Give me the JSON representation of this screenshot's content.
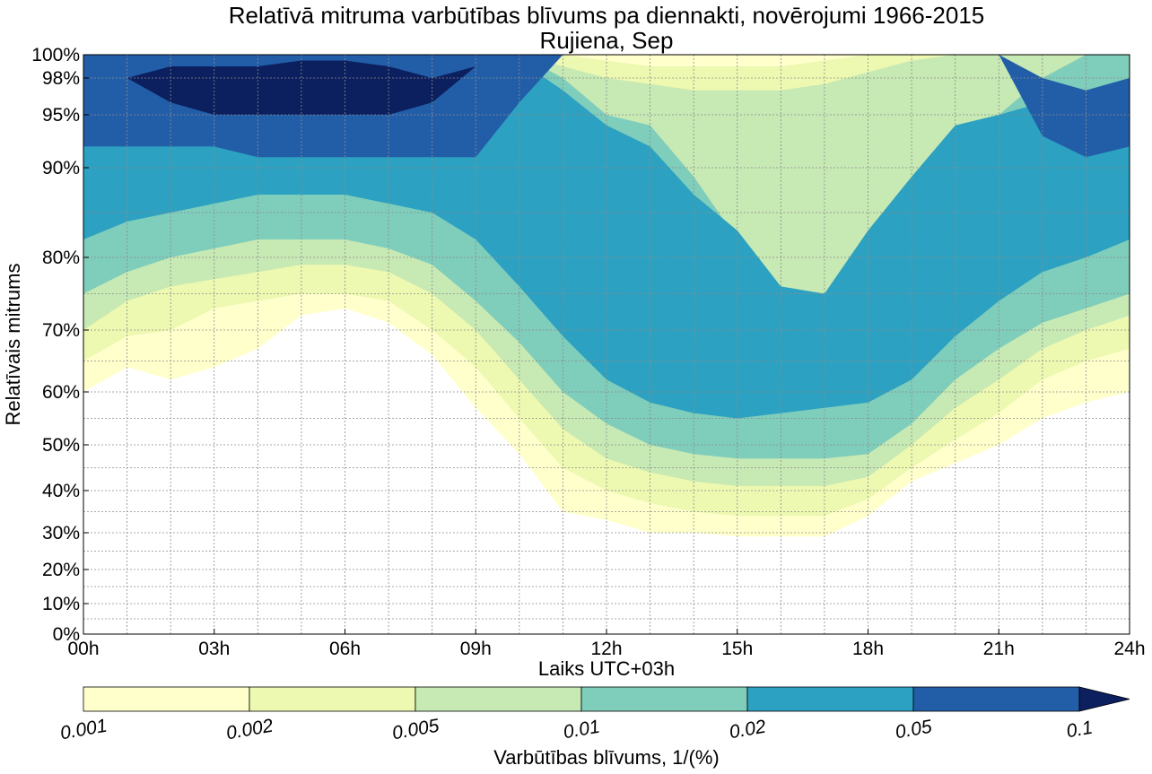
{
  "chart_data": {
    "type": "contour",
    "title": "Relatīvā mitruma varbūtības blīvums pa diennakti, novērojumi 1966-2015",
    "subtitle": "Rujiena, Sep",
    "xlabel": "Laiks UTC+03h",
    "ylabel": "Relatīvais mitrums",
    "x_ticks": [
      "00h",
      "03h",
      "06h",
      "09h",
      "12h",
      "15h",
      "18h",
      "21h",
      "24h"
    ],
    "y_ticks": [
      "0%",
      "10%",
      "20%",
      "30%",
      "40%",
      "50%",
      "60%",
      "70%",
      "80%",
      "90%",
      "95%",
      "98%",
      "100%"
    ],
    "xlim": [
      0,
      24
    ],
    "ylim": [
      0,
      100
    ],
    "grid": true,
    "colorbar": {
      "label": "Varbūtības blīvums, 1/(%)",
      "levels": [
        "0.001",
        "0.002",
        "0.005",
        "0.01",
        "0.02",
        "0.05",
        "0.1"
      ],
      "colors": [
        "#ffffcc",
        "#edf8b1",
        "#c7e9b4",
        "#7fcdbb",
        "#2ca1c1",
        "#225ea8",
        "#0c1f5e"
      ],
      "extend": "max"
    },
    "bands": [
      {
        "level": "0.001",
        "lower": [
          60,
          64,
          62,
          64,
          67,
          72,
          73,
          71,
          66,
          57,
          48,
          35,
          33,
          30,
          30,
          29,
          29,
          29,
          34,
          42,
          46,
          50,
          55,
          58,
          60
        ],
        "upper": [
          100,
          100,
          100,
          100,
          100,
          100,
          100,
          100,
          100,
          100,
          100,
          100,
          100,
          100,
          100,
          100,
          100,
          100,
          100,
          100,
          100,
          100,
          100,
          100,
          100
        ]
      },
      {
        "level": "0.002",
        "lower": [
          65,
          69,
          70,
          73,
          74,
          75,
          75,
          74,
          70,
          64,
          55,
          45,
          40,
          37,
          35,
          34,
          34,
          34,
          38,
          45,
          51,
          56,
          62,
          65,
          67
        ],
        "upper": [
          100,
          100,
          100,
          100,
          100,
          100,
          100,
          100,
          100,
          100,
          100,
          100,
          99.5,
          99,
          99,
          99,
          99,
          99.5,
          100,
          100,
          100,
          100,
          100,
          100,
          100
        ]
      },
      {
        "level": "0.005",
        "lower": [
          70,
          74,
          76,
          77,
          78,
          79,
          79,
          78,
          75,
          70,
          62,
          53,
          47,
          44,
          42,
          41,
          41,
          41,
          43,
          50,
          57,
          62,
          67,
          70,
          72
        ],
        "upper": [
          100,
          100,
          100,
          100,
          100,
          100,
          100,
          100,
          100,
          100,
          100,
          99,
          98,
          97.5,
          97,
          97,
          97,
          97.5,
          98.5,
          99.5,
          100,
          100,
          100,
          100,
          100
        ]
      },
      {
        "level": "0.01",
        "lower": [
          75,
          78,
          80,
          81,
          82,
          82,
          82,
          81,
          79,
          74,
          68,
          60,
          54,
          50,
          48,
          47,
          47,
          47,
          48,
          54,
          62,
          67,
          71,
          73,
          75
        ],
        "upper": [
          100,
          100,
          100,
          100,
          100,
          100,
          100,
          100,
          100,
          100,
          100,
          98,
          95,
          94,
          89,
          82,
          76,
          72,
          80,
          88,
          93,
          95,
          98,
          100,
          100
        ]
      },
      {
        "level": "0.02",
        "lower": [
          82,
          84,
          85,
          86,
          87,
          87,
          87,
          86,
          85,
          82,
          76,
          69,
          62,
          58,
          56,
          55,
          56,
          57,
          58,
          62,
          69,
          74,
          78,
          80,
          82
        ],
        "upper": [
          100,
          100,
          100,
          100,
          100,
          100,
          100,
          100,
          100,
          100,
          99.5,
          97,
          94,
          92,
          87,
          83,
          76,
          75,
          83,
          89,
          94,
          95,
          96,
          97,
          98
        ]
      },
      {
        "level": "0.05",
        "lower": [
          92,
          92,
          92,
          92,
          91,
          91,
          91,
          91,
          91,
          91,
          96,
          100,
          100,
          100,
          100,
          100,
          100,
          100,
          100,
          100,
          100,
          100,
          93,
          91,
          92
        ],
        "upper": [
          100,
          100,
          100,
          100,
          100,
          100,
          100,
          100,
          100,
          100,
          100,
          100,
          100,
          100,
          100,
          100,
          100,
          100,
          100,
          100,
          100,
          100,
          98,
          97,
          98
        ]
      },
      {
        "level": "0.1",
        "lower": [
          98,
          98,
          96,
          95,
          95,
          95,
          95,
          95,
          96,
          99,
          100,
          100,
          100,
          100,
          100,
          100,
          100,
          100,
          100,
          100,
          100,
          100,
          100,
          100,
          100
        ],
        "upper": [
          98,
          98,
          99,
          99,
          99,
          99.5,
          99.5,
          99,
          98,
          99,
          100,
          100,
          100,
          100,
          100,
          100,
          100,
          100,
          100,
          100,
          100,
          100,
          100,
          100,
          100
        ]
      }
    ]
  }
}
